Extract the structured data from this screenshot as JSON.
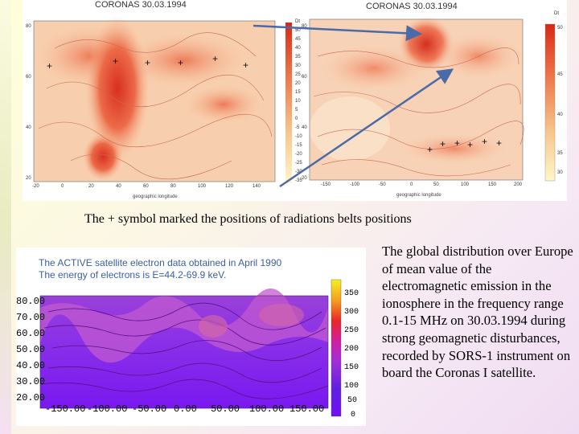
{
  "left_map": {
    "title": "CORONAS 30.03.1994",
    "y_ticks": [
      "80",
      "60",
      "40",
      "20"
    ],
    "x_ticks": [
      "-20",
      "0",
      "20",
      "40",
      "60",
      "80",
      "100",
      "120",
      "140"
    ],
    "x_label": "geographic longitude"
  },
  "right_map": {
    "title": "CORONAS 30.03.1994",
    "y_ticks": [
      "80",
      "60",
      "40",
      "20"
    ],
    "colorbar_ticks_1": [
      "Dt",
      "50",
      "45",
      "40",
      "35",
      "30",
      "25",
      "20",
      "15",
      "10",
      "5",
      "0",
      "-5",
      "-10",
      "-15",
      "-20",
      "-25",
      "-30",
      "-35"
    ],
    "colorbar_ticks_2": [
      "Dt",
      "50",
      "45",
      "40",
      "35",
      "30"
    ],
    "x_ticks": [
      "-150",
      "-100",
      "-50",
      "0",
      "50",
      "100",
      "150",
      "200"
    ],
    "x_label": "geographic longitude"
  },
  "caption": "The + symbol marked the positions of radiations belts positions",
  "active": {
    "line1": "The ACTIVE satellite electron data obtained in April 1990",
    "line2": "The energy of electrons is E=44.2-69.9 keV.",
    "y_ticks": [
      "80.00",
      "70.00",
      "60.00",
      "50.00",
      "40.00",
      "30.00",
      "20.00"
    ],
    "x_ticks": [
      "-150.00",
      "-100.00",
      "-50.00",
      "0.00",
      "50.00",
      "100.00",
      "150.00"
    ],
    "colorbar_ticks": [
      "350",
      "300",
      "250",
      "200",
      "150",
      "100",
      "50",
      "0"
    ]
  },
  "description": "The global distribution over Europe of mean value of the electromagnetic emission in the ionosphere in the frequency range 0.1-15 MHz on 30.03.1994 during strong geomagnetic disturbances, recorded by SORS-1 instrument on board the Coronas I satellite.",
  "colors": {
    "arrow": "#4a6aa8",
    "plus": "#111111",
    "accent_text": "#3a5ea8"
  }
}
